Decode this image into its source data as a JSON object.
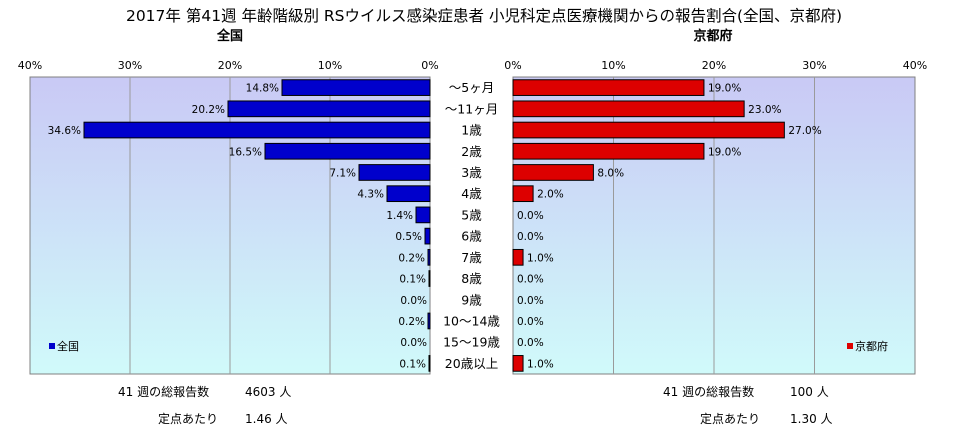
{
  "title": "2017年 第41週 年齢階級別 RSウイルス感染症患者 小児科定点医療機関からの報告割合(全国、京都府)",
  "chart_data": [
    {
      "type": "bar",
      "orientation": "horizontal",
      "title": "全国",
      "categories": [
        "～5ヶ月",
        "～11ヶ月",
        "1歳",
        "2歳",
        "3歳",
        "4歳",
        "5歳",
        "6歳",
        "7歳",
        "8歳",
        "9歳",
        "10～14歳",
        "15～19歳",
        "20歳以上"
      ],
      "series": [
        {
          "name": "全国",
          "values": [
            14.8,
            20.2,
            34.6,
            16.5,
            7.1,
            4.3,
            1.4,
            0.5,
            0.2,
            0.1,
            0.0,
            0.2,
            0.0,
            0.1
          ]
        }
      ],
      "value_labels": [
        "14.8%",
        "20.2%",
        "34.6%",
        "16.5%",
        "7.1%",
        "4.3%",
        "1.4%",
        "0.5%",
        "0.2%",
        "0.1%",
        "0.0%",
        "0.2%",
        "0.0%",
        "0.1%"
      ],
      "xlim": [
        0,
        40
      ],
      "ticks": [
        0,
        10,
        20,
        30,
        40
      ],
      "tick_labels": [
        "0%",
        "10%",
        "20%",
        "30%",
        "40%"
      ],
      "direction": "reversed",
      "legend": "bottom-left",
      "grid": true,
      "color": "#0000CC"
    },
    {
      "type": "bar",
      "orientation": "horizontal",
      "title": "京都府",
      "categories": [
        "～5ヶ月",
        "～11ヶ月",
        "1歳",
        "2歳",
        "3歳",
        "4歳",
        "5歳",
        "6歳",
        "7歳",
        "8歳",
        "9歳",
        "10～14歳",
        "15～19歳",
        "20歳以上"
      ],
      "series": [
        {
          "name": "京都府",
          "values": [
            19.0,
            23.0,
            27.0,
            19.0,
            8.0,
            2.0,
            0.0,
            0.0,
            1.0,
            0.0,
            0.0,
            0.0,
            0.0,
            1.0
          ]
        }
      ],
      "value_labels": [
        "19.0%",
        "23.0%",
        "27.0%",
        "19.0%",
        "8.0%",
        "2.0%",
        "0.0%",
        "0.0%",
        "1.0%",
        "0.0%",
        "0.0%",
        "0.0%",
        "0.0%",
        "1.0%"
      ],
      "xlim": [
        0,
        40
      ],
      "ticks": [
        0,
        10,
        20,
        30,
        40
      ],
      "tick_labels": [
        "0%",
        "10%",
        "20%",
        "30%",
        "40%"
      ],
      "direction": "normal",
      "legend": "bottom-right",
      "grid": true,
      "color": "#DD0000"
    }
  ],
  "footer": {
    "national": {
      "total_label": "41 週の総報告数",
      "total_value": "4603 人",
      "per_label": "定点あたり",
      "per_value": "1.46 人"
    },
    "kyoto": {
      "total_label": "41 週の総報告数",
      "total_value": "100 人",
      "per_label": "定点あたり",
      "per_value": "1.30 人"
    }
  },
  "colors": {
    "plot_bg_top": "#C9C9F5",
    "plot_bg_bottom": "#D0FAFA",
    "national_bar": "#0000CC",
    "kyoto_bar": "#DD0000"
  }
}
